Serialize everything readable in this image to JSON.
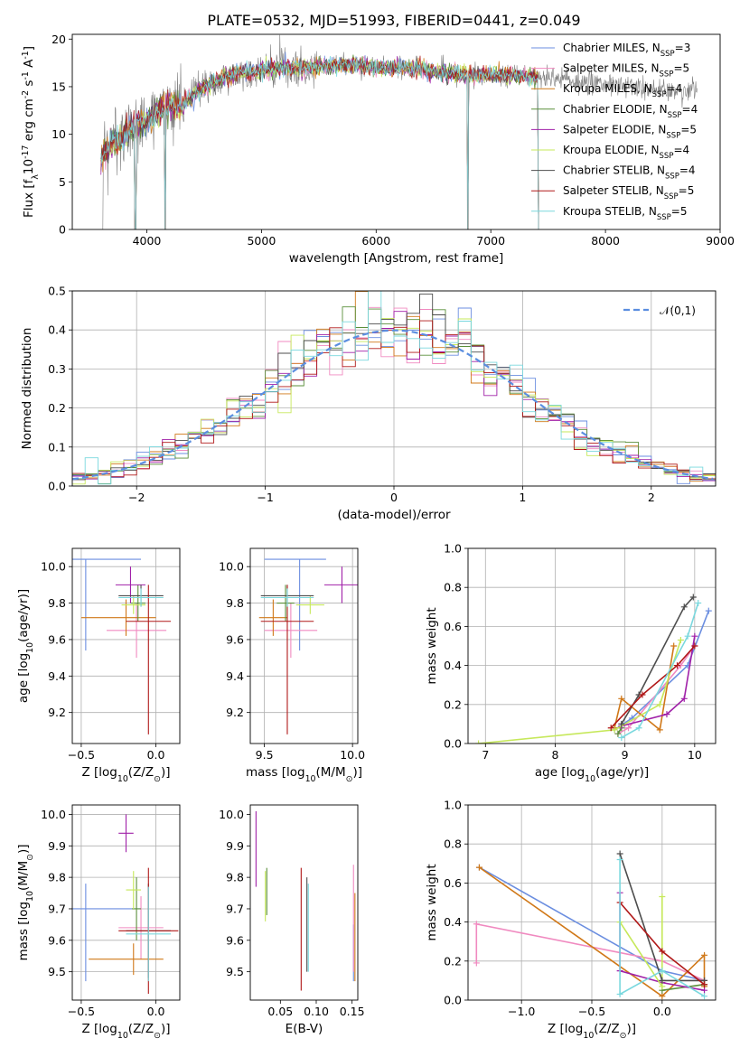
{
  "figure": {
    "title": "PLATE=0532, MJD=51993, FIBERID=0441, z=0.049"
  },
  "colors": {
    "Chabrier MILES": "#6b8ee0",
    "Salpeter MILES": "#f08ac0",
    "Kroupa MILES": "#d07818",
    "Chabrier ELODIE": "#5a8f3a",
    "Salpeter ELODIE": "#a020a8",
    "Kroupa ELODIE": "#c6e85a",
    "Chabrier STELIB": "#4d4d4d",
    "Salpeter STELIB": "#b01818",
    "Kroupa STELIB": "#7ad8de",
    "normal_curve": "#5b8ee0",
    "spectrum_data": "#7f7f7f"
  },
  "chart_data": [
    {
      "id": "spectrum",
      "type": "line",
      "title": "PLATE=0532, MJD=51993, FIBERID=0441, z=0.049",
      "xlabel": "wavelength [Angstrom, rest frame]",
      "ylabel": "Flux [f$_\\lambda$10$^{-17}$ erg cm$^{-2}$ s$^{-1}$ A$^{-1}$]",
      "xlim": [
        3350,
        9000
      ],
      "ylim": [
        0,
        20.5
      ],
      "xticks": [
        4000,
        5000,
        6000,
        7000,
        8000,
        9000
      ],
      "yticks": [
        0,
        5,
        10,
        15,
        20
      ],
      "grid": false,
      "legend": {
        "placement": "top-right",
        "entries": [
          {
            "model": "Chabrier MILES",
            "label": "Chabrier MILES, N",
            "sub": "SSP",
            "tail": "=3"
          },
          {
            "model": "Salpeter MILES",
            "label": "Salpeter MILES, N",
            "sub": "SSP",
            "tail": "=5"
          },
          {
            "model": "Kroupa MILES",
            "label": "Kroupa MILES, N",
            "sub": "SSP",
            "tail": "=4"
          },
          {
            "model": "Chabrier ELODIE",
            "label": "Chabrier ELODIE, N",
            "sub": "SSP",
            "tail": "=4"
          },
          {
            "model": "Salpeter ELODIE",
            "label": "Salpeter ELODIE, N",
            "sub": "SSP",
            "tail": "=5"
          },
          {
            "model": "Kroupa ELODIE",
            "label": "Kroupa ELODIE, N",
            "sub": "SSP",
            "tail": "=4"
          },
          {
            "model": "Chabrier STELIB",
            "label": "Chabrier STELIB, N",
            "sub": "SSP",
            "tail": "=4"
          },
          {
            "model": "Salpeter STELIB",
            "label": "Salpeter STELIB, N",
            "sub": "SSP",
            "tail": "=5"
          },
          {
            "model": "Kroupa STELIB",
            "label": "Kroupa STELIB, N",
            "sub": "SSP",
            "tail": "=5"
          }
        ]
      },
      "observed_spectrum_envelope": {
        "wavelength": [
          3600,
          3700,
          3800,
          3900,
          4000,
          4100,
          4200,
          4300,
          4400,
          4500,
          4600,
          4700,
          4800,
          4900,
          5000,
          5200,
          5400,
          5600,
          5800,
          6000,
          6200,
          6400,
          6600,
          6800,
          7000,
          7200,
          7400,
          7600,
          7800,
          8000,
          8200,
          8400,
          8600,
          8800
        ],
        "flux": [
          7.5,
          9.0,
          10.0,
          11.0,
          11.5,
          12.5,
          13.0,
          13.0,
          14.0,
          15.0,
          15.5,
          16.0,
          16.5,
          16.5,
          16.7,
          17.0,
          17.0,
          17.2,
          17.3,
          17.0,
          17.0,
          16.8,
          16.5,
          16.2,
          16.3,
          16.2,
          16.0,
          15.8,
          15.5,
          15.2,
          15.0,
          14.8,
          14.5,
          14.3
        ]
      },
      "model_range": [
        3600,
        7420
      ],
      "absorption_drops": [
        3900,
        4160,
        6800,
        7420
      ]
    },
    {
      "id": "residuals",
      "type": "line",
      "xlabel": "(data-model)/error",
      "ylabel": "Normed distribution",
      "xlim": [
        -2.5,
        2.5
      ],
      "ylim": [
        0,
        0.5
      ],
      "xticks": [
        -2,
        -1,
        0,
        1,
        2
      ],
      "yticks": [
        0.0,
        0.1,
        0.2,
        0.3,
        0.4,
        0.5
      ],
      "grid": true,
      "legend": {
        "placement": "top-right",
        "label": "$\\mathcal{N}(0,1)$"
      },
      "bin_width": 0.1,
      "reference_curve": "normal(0,1)"
    },
    {
      "id": "age-vs-Z",
      "type": "scatter",
      "xlabel": "Z [log$_{10}$(Z/Z$_\\odot$)]",
      "ylabel": "age  [log$_{10}$(age/yr)]",
      "xlim": [
        -0.56,
        0.16
      ],
      "ylim": [
        9.03,
        10.1
      ],
      "xticks": [
        -0.5,
        0.0
      ],
      "yticks": [
        9.2,
        9.4,
        9.6,
        9.8,
        10.0
      ],
      "grid": true,
      "points": [
        {
          "model": "Chabrier MILES",
          "x": -0.47,
          "xerr": [
            0.45,
            0.37
          ],
          "y": 10.04,
          "yerr": [
            0.5,
            0.0
          ]
        },
        {
          "model": "Salpeter MILES",
          "x": -0.13,
          "xerr": [
            0.2,
            0.2
          ],
          "y": 9.65,
          "yerr": [
            0.15,
            0.15
          ]
        },
        {
          "model": "Kroupa MILES",
          "x": -0.2,
          "xerr": [
            0.3,
            0.2
          ],
          "y": 9.72,
          "yerr": [
            0.1,
            0.1
          ]
        },
        {
          "model": "Chabrier ELODIE",
          "x": -0.12,
          "xerr": [
            0.05,
            0.05
          ],
          "y": 9.8,
          "yerr": [
            0.1,
            0.1
          ]
        },
        {
          "model": "Salpeter ELODIE",
          "x": -0.17,
          "xerr": [
            0.1,
            0.1
          ],
          "y": 9.9,
          "yerr": [
            0.1,
            0.1
          ]
        },
        {
          "model": "Kroupa ELODIE",
          "x": -0.15,
          "xerr": [
            0.08,
            0.08
          ],
          "y": 9.79,
          "yerr": [
            0.05,
            0.05
          ]
        },
        {
          "model": "Chabrier STELIB",
          "x": -0.1,
          "xerr": [
            0.15,
            0.15
          ],
          "y": 9.84,
          "yerr": [
            0.06,
            0.06
          ]
        },
        {
          "model": "Salpeter STELIB",
          "x": -0.05,
          "xerr": [
            0.15,
            0.15
          ],
          "y": 9.7,
          "yerr": [
            0.62,
            0.2
          ]
        },
        {
          "model": "Kroupa STELIB",
          "x": -0.1,
          "xerr": [
            0.15,
            0.15
          ],
          "y": 9.83,
          "yerr": [
            0.05,
            0.05
          ]
        }
      ]
    },
    {
      "id": "age-vs-mass",
      "type": "scatter",
      "xlabel": "mass [log$_{10}$(M/M$_\\odot$)]",
      "ylabel": "",
      "xlim": [
        9.42,
        10.03
      ],
      "ylim": [
        9.03,
        10.1
      ],
      "xticks": [
        9.5,
        10.0
      ],
      "yticks": [
        9.2,
        9.4,
        9.6,
        9.8,
        10.0
      ],
      "grid": true,
      "points": [
        {
          "model": "Chabrier MILES",
          "x": 9.7,
          "xerr": [
            0.2,
            0.15
          ],
          "y": 10.04,
          "yerr": [
            0.5,
            0.0
          ]
        },
        {
          "model": "Salpeter MILES",
          "x": 9.65,
          "xerr": [
            0.15,
            0.15
          ],
          "y": 9.65,
          "yerr": [
            0.15,
            0.15
          ]
        },
        {
          "model": "Kroupa MILES",
          "x": 9.55,
          "xerr": [
            0.08,
            0.08
          ],
          "y": 9.72,
          "yerr": [
            0.1,
            0.1
          ]
        },
        {
          "model": "Chabrier ELODIE",
          "x": 9.62,
          "xerr": [
            0.05,
            0.05
          ],
          "y": 9.8,
          "yerr": [
            0.1,
            0.1
          ]
        },
        {
          "model": "Salpeter ELODIE",
          "x": 9.94,
          "xerr": [
            0.1,
            0.1
          ],
          "y": 9.9,
          "yerr": [
            0.1,
            0.1
          ]
        },
        {
          "model": "Kroupa ELODIE",
          "x": 9.76,
          "xerr": [
            0.08,
            0.08
          ],
          "y": 9.79,
          "yerr": [
            0.05,
            0.05
          ]
        },
        {
          "model": "Chabrier STELIB",
          "x": 9.63,
          "xerr": [
            0.15,
            0.15
          ],
          "y": 9.84,
          "yerr": [
            0.06,
            0.06
          ]
        },
        {
          "model": "Salpeter STELIB",
          "x": 9.63,
          "xerr": [
            0.15,
            0.15
          ],
          "y": 9.7,
          "yerr": [
            0.62,
            0.2
          ]
        },
        {
          "model": "Kroupa STELIB",
          "x": 9.63,
          "xerr": [
            0.15,
            0.15
          ],
          "y": 9.83,
          "yerr": [
            0.05,
            0.05
          ]
        }
      ]
    },
    {
      "id": "weight-vs-age",
      "type": "line",
      "xlabel": "age  [log$_{10}$(age/yr)]",
      "ylabel": "mass weight",
      "xlim": [
        6.75,
        10.3
      ],
      "ylim": [
        0,
        1.0
      ],
      "xticks": [
        7,
        8,
        9,
        10
      ],
      "yticks": [
        0.0,
        0.2,
        0.4,
        0.6,
        0.8,
        1.0
      ],
      "grid": true,
      "series": [
        {
          "model": "Chabrier MILES",
          "x": [
            8.85,
            9.1,
            9.9,
            10.2
          ],
          "y": [
            0.07,
            0.13,
            0.4,
            0.68
          ]
        },
        {
          "model": "Salpeter MILES",
          "x": [
            8.9,
            9.05,
            9.8,
            10.0
          ],
          "y": [
            0.05,
            0.08,
            0.4,
            0.5
          ]
        },
        {
          "model": "Kroupa MILES",
          "x": [
            8.85,
            8.95,
            9.5,
            9.7
          ],
          "y": [
            0.08,
            0.23,
            0.07,
            0.5
          ]
        },
        {
          "model": "Chabrier ELODIE",
          "x": [
            8.9,
            8.95
          ],
          "y": [
            0.05,
            0.08
          ]
        },
        {
          "model": "Salpeter ELODIE",
          "x": [
            8.95,
            9.6,
            9.85,
            10.0
          ],
          "y": [
            0.09,
            0.15,
            0.23,
            0.55
          ]
        },
        {
          "model": "Kroupa ELODIE",
          "x": [
            6.9,
            8.85,
            9.5,
            9.8
          ],
          "y": [
            0.0,
            0.07,
            0.2,
            0.53
          ]
        },
        {
          "model": "Chabrier STELIB",
          "x": [
            8.95,
            9.2,
            9.85,
            9.98
          ],
          "y": [
            0.1,
            0.25,
            0.7,
            0.75
          ]
        },
        {
          "model": "Salpeter STELIB",
          "x": [
            8.8,
            9.25,
            9.75,
            10.0
          ],
          "y": [
            0.08,
            0.25,
            0.4,
            0.5
          ]
        },
        {
          "model": "Kroupa STELIB",
          "x": [
            8.95,
            9.2,
            9.9,
            10.05
          ],
          "y": [
            0.03,
            0.08,
            0.55,
            0.72
          ]
        }
      ]
    },
    {
      "id": "mass-vs-Z",
      "type": "scatter",
      "xlabel": "Z [log$_{10}$(Z/Z$_\\odot$)]",
      "ylabel": "mass [log$_{10}$(M/M$_\\odot$)]",
      "xlim": [
        -0.56,
        0.16
      ],
      "ylim": [
        9.41,
        10.03
      ],
      "xticks": [
        -0.5,
        0.0
      ],
      "yticks": [
        9.5,
        9.6,
        9.7,
        9.8,
        9.9,
        10.0
      ],
      "grid": true,
      "points": [
        {
          "model": "Chabrier MILES",
          "x": -0.47,
          "xerr": [
            0.45,
            0.37
          ],
          "y": 9.7,
          "yerr": [
            0.23,
            0.08
          ]
        },
        {
          "model": "Salpeter MILES",
          "x": -0.1,
          "xerr": [
            0.15,
            0.15
          ],
          "y": 9.64,
          "yerr": [
            0.1,
            0.1
          ]
        },
        {
          "model": "Kroupa MILES",
          "x": -0.15,
          "xerr": [
            0.3,
            0.2
          ],
          "y": 9.54,
          "yerr": [
            0.05,
            0.05
          ]
        },
        {
          "model": "Chabrier ELODIE",
          "x": -0.13,
          "xerr": [
            0.03,
            0.03
          ],
          "y": 9.7,
          "yerr": [
            0.1,
            0.1
          ]
        },
        {
          "model": "Salpeter ELODIE",
          "x": -0.2,
          "xerr": [
            0.05,
            0.05
          ],
          "y": 9.94,
          "yerr": [
            0.06,
            0.06
          ]
        },
        {
          "model": "Kroupa ELODIE",
          "x": -0.15,
          "xerr": [
            0.05,
            0.05
          ],
          "y": 9.76,
          "yerr": [
            0.06,
            0.06
          ]
        },
        {
          "model": "Chabrier STELIB",
          "x": -0.05,
          "xerr": [
            0.15,
            0.15
          ],
          "y": 9.63,
          "yerr": [
            0.15,
            0.15
          ]
        },
        {
          "model": "Salpeter STELIB",
          "x": -0.05,
          "xerr": [
            0.2,
            0.2
          ],
          "y": 9.63,
          "yerr": [
            0.2,
            0.2
          ]
        },
        {
          "model": "Kroupa STELIB",
          "x": -0.05,
          "xerr": [
            0.15,
            0.15
          ],
          "y": 9.62,
          "yerr": [
            0.15,
            0.15
          ]
        }
      ]
    },
    {
      "id": "mass-vs-ebv",
      "type": "scatter",
      "xlabel": "E(B-V)",
      "ylabel": "",
      "xlim": [
        0.008,
        0.158
      ],
      "ylim": [
        9.41,
        10.03
      ],
      "xticks": [
        0.05,
        0.1,
        0.15
      ],
      "xticklabels": [
        "0.05",
        "0.10",
        "0.15"
      ],
      "yticks": [
        9.5,
        9.6,
        9.7,
        9.8,
        9.9,
        10.0
      ],
      "grid": false,
      "points": [
        {
          "model": "Chabrier MILES",
          "x": 0.152,
          "y": 9.6,
          "yerr": [
            0.13,
            0.05
          ]
        },
        {
          "model": "Salpeter MILES",
          "x": 0.152,
          "y": 9.64,
          "yerr": [
            0.14,
            0.2
          ]
        },
        {
          "model": "Kroupa MILES",
          "x": 0.154,
          "y": 9.6,
          "yerr": [
            0.13,
            0.15
          ]
        },
        {
          "model": "Chabrier ELODIE",
          "x": 0.031,
          "y": 9.75,
          "yerr": [
            0.07,
            0.08
          ]
        },
        {
          "model": "Salpeter ELODIE",
          "x": 0.016,
          "y": 9.89,
          "yerr": [
            0.12,
            0.12
          ]
        },
        {
          "model": "Kroupa ELODIE",
          "x": 0.029,
          "y": 9.74,
          "yerr": [
            0.08,
            0.08
          ]
        },
        {
          "model": "Chabrier STELIB",
          "x": 0.087,
          "y": 9.65,
          "yerr": [
            0.15,
            0.15
          ]
        },
        {
          "model": "Salpeter STELIB",
          "x": 0.079,
          "y": 9.63,
          "yerr": [
            0.19,
            0.2
          ]
        },
        {
          "model": "Kroupa STELIB",
          "x": 0.089,
          "y": 9.64,
          "yerr": [
            0.14,
            0.14
          ]
        }
      ]
    },
    {
      "id": "weight-vs-Z",
      "type": "line",
      "xlabel": "Z [log$_{10}$(Z/Z$_\\odot$)]",
      "ylabel": "mass weight",
      "xlim": [
        -1.38,
        0.38
      ],
      "ylim": [
        0,
        1.0
      ],
      "xticks": [
        -1.0,
        -0.5,
        0.0
      ],
      "yticks": [
        0.0,
        0.2,
        0.4,
        0.6,
        0.8,
        1.0
      ],
      "grid": true,
      "series": [
        {
          "model": "Chabrier MILES",
          "x": [
            -1.3,
            0.0,
            0.3
          ],
          "y": [
            0.68,
            0.15,
            0.1
          ]
        },
        {
          "model": "Salpeter MILES",
          "x": [
            -1.32,
            -1.32,
            0.0,
            0.3
          ],
          "y": [
            0.19,
            0.39,
            0.2,
            0.1
          ]
        },
        {
          "model": "Kroupa MILES",
          "x": [
            -1.3,
            0.0,
            0.3,
            0.3
          ],
          "y": [
            0.68,
            0.02,
            0.23,
            0.07
          ]
        },
        {
          "model": "Chabrier ELODIE",
          "x": [
            0.0,
            0.3
          ],
          "y": [
            0.05,
            0.08
          ]
        },
        {
          "model": "Salpeter ELODIE",
          "x": [
            -0.3,
            -0.3,
            0.0,
            0.3
          ],
          "y": [
            0.55,
            0.15,
            0.09,
            0.05
          ]
        },
        {
          "model": "Kroupa ELODIE",
          "x": [
            -0.3,
            0.0,
            0.0
          ],
          "y": [
            0.4,
            0.07,
            0.53
          ]
        },
        {
          "model": "Chabrier STELIB",
          "x": [
            -0.3,
            0.0,
            0.3
          ],
          "y": [
            0.75,
            0.1,
            0.1
          ]
        },
        {
          "model": "Salpeter STELIB",
          "x": [
            -0.3,
            0.0,
            0.3
          ],
          "y": [
            0.5,
            0.25,
            0.08
          ]
        },
        {
          "model": "Kroupa STELIB",
          "x": [
            -0.3,
            -0.3,
            0.0,
            0.3
          ],
          "y": [
            0.72,
            0.03,
            0.15,
            0.02
          ]
        }
      ]
    }
  ]
}
